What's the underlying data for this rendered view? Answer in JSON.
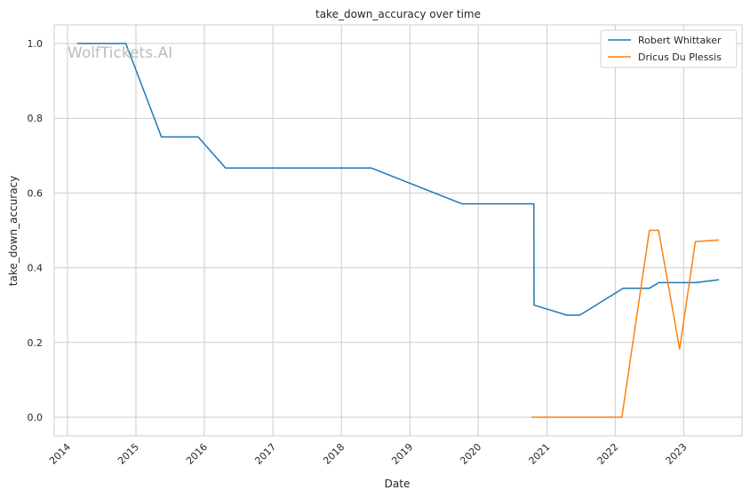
{
  "chart_data": {
    "type": "line",
    "title": "take_down_accuracy over time",
    "xlabel": "Date",
    "ylabel": "take_down_accuracy",
    "watermark": "WolfTickets.AI",
    "x_ticks": [
      "2014",
      "2015",
      "2016",
      "2017",
      "2018",
      "2019",
      "2020",
      "2021",
      "2022",
      "2023"
    ],
    "y_ticks": [
      "0.0",
      "0.2",
      "0.4",
      "0.6",
      "0.8",
      "1.0"
    ],
    "xlim": [
      "2013-10-22",
      "2023-11-08"
    ],
    "ylim": [
      -0.05,
      1.05
    ],
    "grid": true,
    "legend_position": "top-right",
    "series": [
      {
        "name": "Robert Whittaker",
        "color": "#1f77b4",
        "points": [
          [
            "2014-02-22",
            1.0
          ],
          [
            "2014-11-08",
            1.0
          ],
          [
            "2015-05-17",
            0.75
          ],
          [
            "2015-11-29",
            0.75
          ],
          [
            "2016-04-23",
            0.667
          ],
          [
            "2018-06-09",
            0.667
          ],
          [
            "2019-10-06",
            0.571
          ],
          [
            "2020-10-24",
            0.571
          ],
          [
            "2020-10-25",
            0.3
          ],
          [
            "2021-04-17",
            0.273
          ],
          [
            "2021-06-26",
            0.273
          ],
          [
            "2022-02-12",
            0.345
          ],
          [
            "2022-07-02",
            0.345
          ],
          [
            "2022-08-21",
            0.36
          ],
          [
            "2023-03-05",
            0.36
          ],
          [
            "2023-07-08",
            0.368
          ]
        ]
      },
      {
        "name": "Dricus Du Plessis",
        "color": "#ff7f0e",
        "points": [
          [
            "2020-10-10",
            0.0
          ],
          [
            "2022-02-05",
            0.0
          ],
          [
            "2022-07-02",
            0.5
          ],
          [
            "2022-08-20",
            0.5
          ],
          [
            "2022-12-10",
            0.182
          ],
          [
            "2023-03-04",
            0.47
          ],
          [
            "2023-07-08",
            0.474
          ]
        ]
      }
    ]
  }
}
